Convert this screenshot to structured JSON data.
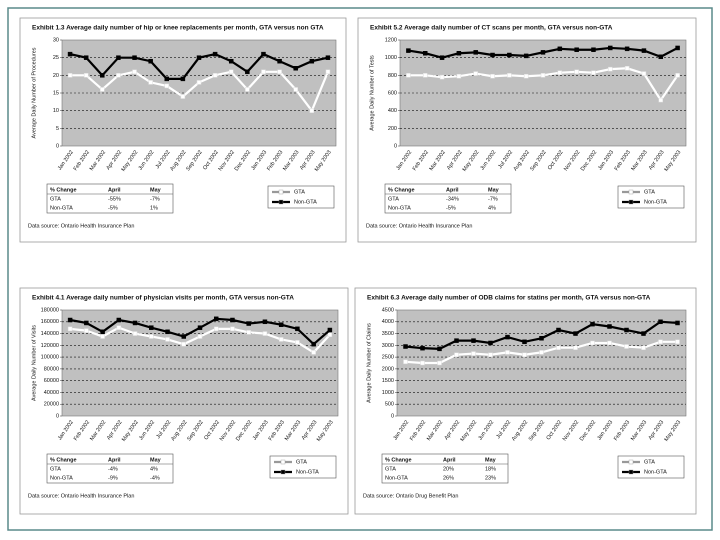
{
  "chart_data": [
    {
      "type": "line",
      "title": "Exhibit 1.3 Average daily number of hip or knee replacements per month, GTA versus non GTA",
      "y_label": "Average Daily Number of Procedures",
      "categories": [
        "Jan 2002",
        "Feb 2002",
        "Mar 2002",
        "Apr 2002",
        "May 2002",
        "Jun 2002",
        "Jul 2002",
        "Aug 2002",
        "Sep 2002",
        "Oct 2002",
        "Nov 2002",
        "Dec 2002",
        "Jan 2003",
        "Feb 2003",
        "Mar 2003",
        "Apr 2003",
        "May 2003"
      ],
      "series": [
        {
          "name": "GTA",
          "color": "#ffffff",
          "values": [
            20,
            20,
            16,
            20,
            21,
            18,
            17,
            14,
            18,
            20,
            21,
            16,
            21,
            21,
            16,
            10,
            21
          ]
        },
        {
          "name": "Non-GTA",
          "color": "#000000",
          "values": [
            26,
            25,
            20,
            25,
            25,
            24,
            19,
            19,
            25,
            26,
            24,
            21,
            26,
            24,
            22,
            24,
            25
          ]
        }
      ],
      "ylim": [
        0,
        30
      ],
      "yticks": [
        0,
        5,
        10,
        15,
        20,
        25,
        30
      ],
      "grid": true,
      "table": {
        "header": [
          "% Change",
          "April",
          "May"
        ],
        "rows": [
          [
            "GTA",
            "-55%",
            "-7%"
          ],
          [
            "Non-GTA",
            "-5%",
            "1%"
          ]
        ]
      },
      "source": "Data source: Ontario Health Insurance Plan"
    },
    {
      "type": "line",
      "title": "Exhibit 5.2 Average daily number of CT scans per month, GTA versus non-GTA",
      "y_label": "Average Daily Number of Tests",
      "categories": [
        "Jan 2002",
        "Feb 2002",
        "Mar 2002",
        "Apr 2002",
        "May 2002",
        "Jun 2002",
        "Jul 2002",
        "Aug 2002",
        "Sep 2002",
        "Oct 2002",
        "Nov 2002",
        "Dec 2002",
        "Jan 2003",
        "Feb 2003",
        "Mar 2003",
        "Apr 2003",
        "May 2003"
      ],
      "series": [
        {
          "name": "GTA",
          "color": "#ffffff",
          "values": [
            800,
            800,
            780,
            790,
            820,
            790,
            800,
            790,
            800,
            830,
            840,
            830,
            870,
            880,
            820,
            520,
            800
          ]
        },
        {
          "name": "Non-GTA",
          "color": "#000000",
          "values": [
            1080,
            1050,
            1000,
            1050,
            1060,
            1030,
            1030,
            1020,
            1060,
            1100,
            1090,
            1090,
            1110,
            1100,
            1080,
            1010,
            1110
          ]
        }
      ],
      "ylim": [
        0,
        1200
      ],
      "yticks": [
        0,
        200,
        400,
        600,
        800,
        1000,
        1200
      ],
      "grid": true,
      "table": {
        "header": [
          "% Change",
          "April",
          "May"
        ],
        "rows": [
          [
            "GTA",
            "-34%",
            "-7%"
          ],
          [
            "Non-GTA",
            "-5%",
            "4%"
          ]
        ]
      },
      "source": "Data source: Ontario Health Insurance Plan"
    },
    {
      "type": "line",
      "title": "Exhibit 4.1 Average daily number of physician visits per month, GTA versus non-GTA",
      "y_label": "Average Daily Number of Visits",
      "categories": [
        "Jan 2002",
        "Feb 2002",
        "Mar 2002",
        "Apr 2002",
        "May 2002",
        "Jun 2002",
        "Jul 2002",
        "Aug 2002",
        "Sep 2002",
        "Oct 2002",
        "Nov 2002",
        "Dec 2002",
        "Jan 2003",
        "Feb 2003",
        "Mar 2003",
        "Apr 2003",
        "May 2003"
      ],
      "series": [
        {
          "name": "GTA",
          "color": "#ffffff",
          "values": [
            148000,
            145000,
            135000,
            150000,
            140000,
            135000,
            130000,
            122000,
            135000,
            148000,
            148000,
            142000,
            140000,
            130000,
            125000,
            108000,
            138000
          ]
        },
        {
          "name": "Non-GTA",
          "color": "#000000",
          "values": [
            163000,
            158000,
            143000,
            163000,
            158000,
            150000,
            143000,
            135000,
            150000,
            165000,
            163000,
            157000,
            160000,
            155000,
            148000,
            122000,
            146000
          ]
        }
      ],
      "ylim": [
        0,
        180000
      ],
      "yticks": [
        0,
        20000,
        40000,
        60000,
        80000,
        100000,
        120000,
        140000,
        160000,
        180000
      ],
      "grid": true,
      "table": {
        "header": [
          "% Change",
          "April",
          "May"
        ],
        "rows": [
          [
            "GTA",
            "-4%",
            "4%"
          ],
          [
            "Non-GTA",
            "-9%",
            "-4%"
          ]
        ]
      },
      "source": "Data source: Ontario Health Insurance Plan"
    },
    {
      "type": "line",
      "title": "Exhibit 6.3 Average daily number of ODB claims for statins per month, GTA versus non-GTA",
      "y_label": "Average Daily Number of Claims",
      "categories": [
        "Jan 2002",
        "Feb 2002",
        "Mar 2002",
        "Apr 2002",
        "May 2002",
        "Jun 2002",
        "Jul 2002",
        "Aug 2002",
        "Sep 2002",
        "Oct 2002",
        "Nov 2002",
        "Dec 2002",
        "Jan 2003",
        "Feb 2003",
        "Mar 2003",
        "Apr 2003",
        "May 2003"
      ],
      "series": [
        {
          "name": "GTA",
          "color": "#ffffff",
          "values": [
            2300,
            2250,
            2250,
            2600,
            2650,
            2600,
            2700,
            2600,
            2700,
            2900,
            2900,
            3100,
            3100,
            2950,
            2900,
            3150,
            3150
          ]
        },
        {
          "name": "Non-GTA",
          "color": "#000000",
          "values": [
            2950,
            2880,
            2850,
            3200,
            3200,
            3100,
            3350,
            3150,
            3300,
            3650,
            3500,
            3900,
            3800,
            3650,
            3500,
            4000,
            3950
          ]
        }
      ],
      "ylim": [
        0,
        4500
      ],
      "yticks": [
        0,
        500,
        1000,
        1500,
        2000,
        2500,
        3000,
        3500,
        4000,
        4500
      ],
      "grid": true,
      "table": {
        "header": [
          "% Change",
          "April",
          "May"
        ],
        "rows": [
          [
            "GTA",
            "20%",
            "18%"
          ],
          [
            "Non-GTA",
            "26%",
            "23%"
          ]
        ]
      },
      "source": "Data source: Ontario Drug Benefit Plan"
    }
  ]
}
